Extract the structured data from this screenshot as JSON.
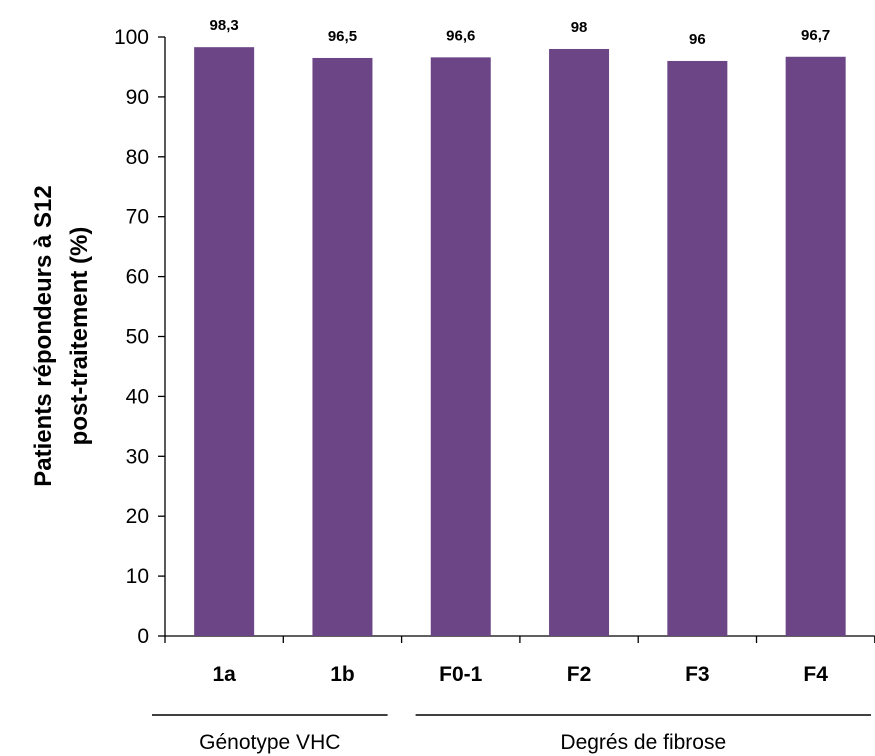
{
  "chart_data": {
    "type": "bar",
    "title": "",
    "ylabel_lines": [
      "Patients répondeurs à S12",
      "post-traitement (%)"
    ],
    "xlabel": "",
    "categories": [
      "1a",
      "1b",
      "F0-1",
      "F2",
      "F3",
      "F4"
    ],
    "values": [
      98.3,
      96.5,
      96.6,
      98,
      96,
      96.7
    ],
    "value_labels": [
      "98,3",
      "96,5",
      "96,6",
      "98",
      "96",
      "96,7"
    ],
    "ylim": [
      0,
      100
    ],
    "yticks": [
      0,
      10,
      20,
      30,
      40,
      50,
      60,
      70,
      80,
      90,
      100
    ],
    "grid": false,
    "legend": "none",
    "groups": [
      {
        "label": "Génotype VHC",
        "categories": [
          "1a",
          "1b"
        ]
      },
      {
        "label": "Degrés de fibrose",
        "categories": [
          "F0-1",
          "F2",
          "F3",
          "F4"
        ]
      }
    ],
    "colors": {
      "bar": "#6b4585",
      "axis": "#000000"
    }
  }
}
